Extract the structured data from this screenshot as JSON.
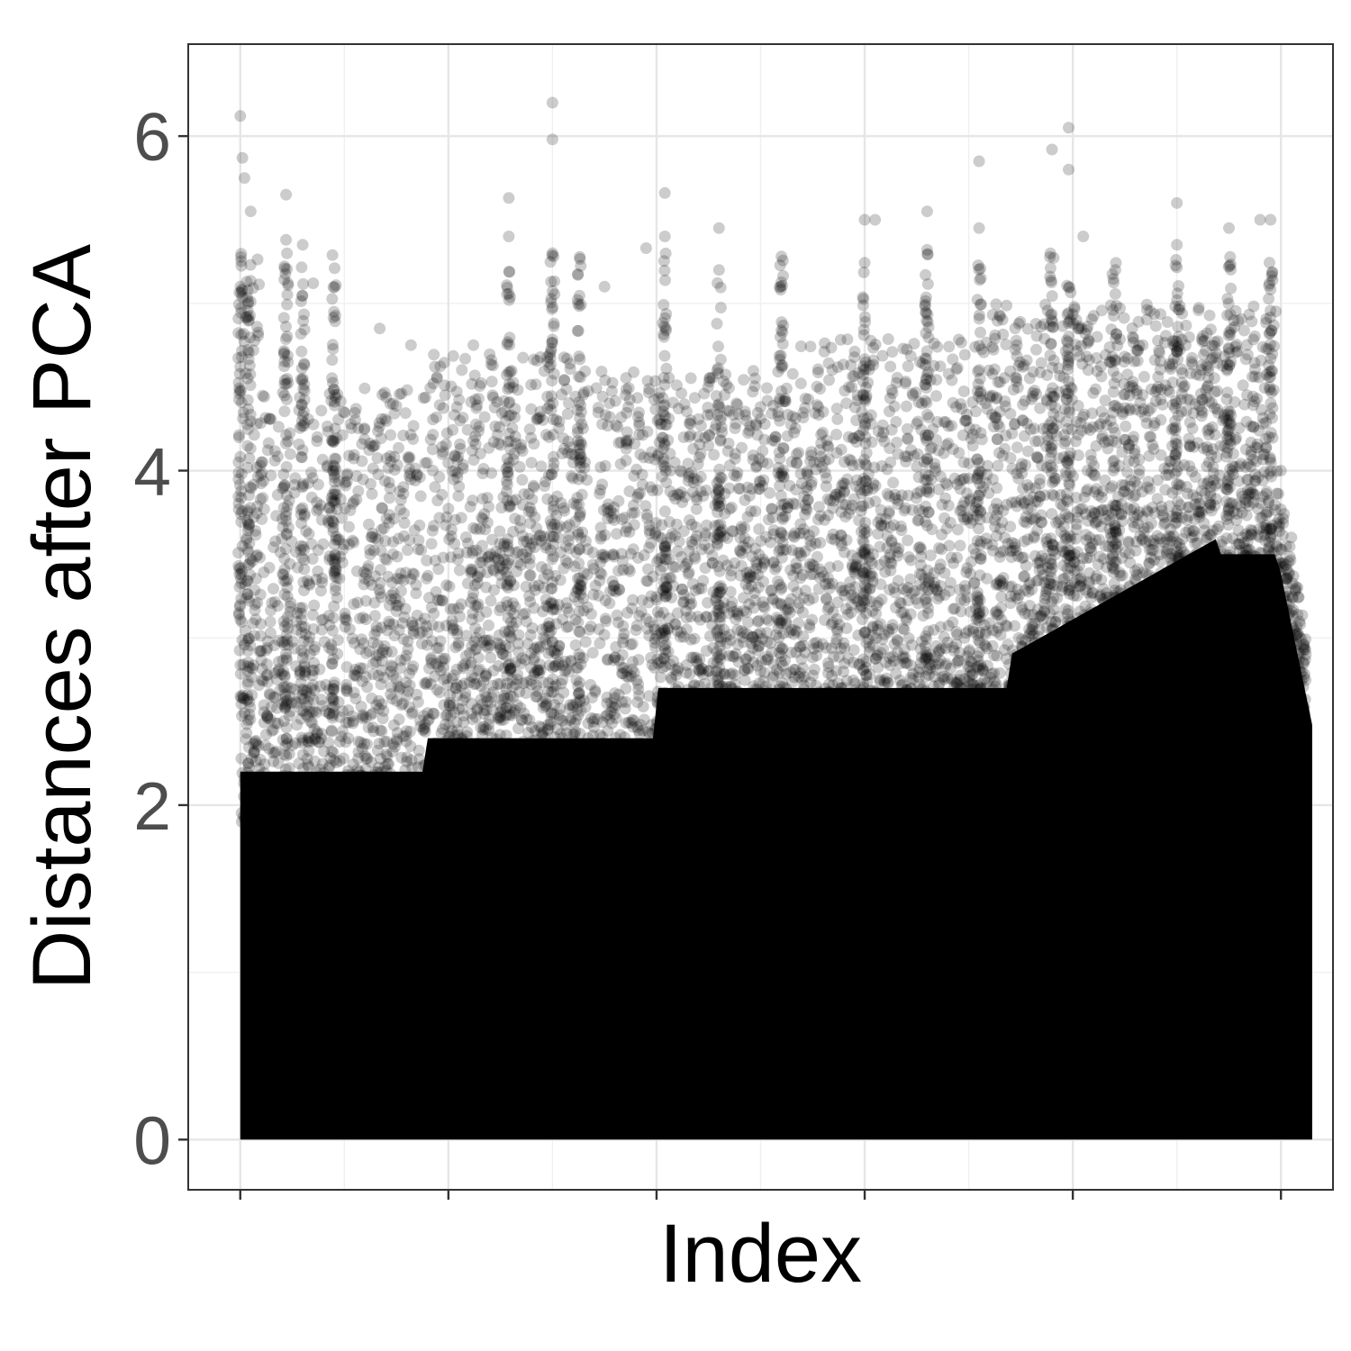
{
  "chart_data": {
    "type": "scatter",
    "title": "",
    "xlabel": "Index",
    "ylabel": "Distances after PCA",
    "x_tick_labels_shown": false,
    "y_ticks": [
      0,
      2,
      4,
      6
    ],
    "y_tick_labels": [
      "0",
      "2",
      "4",
      "6"
    ],
    "ylim": [
      -0.3,
      6.55
    ],
    "xlim": [
      -0.25,
      5.25
    ],
    "x_major_gridlines": [
      0,
      1,
      2,
      3,
      4,
      5
    ],
    "x_minor_gridlines": [
      0.5,
      1.5,
      2.5,
      3.5,
      4.5
    ],
    "grid": true,
    "legend": "none",
    "point_color": "#000000",
    "point_alpha": 0.2,
    "series_description": "dense point cloud: values concentrated between 0 and ~3, sparse vertical spikes reaching above 5",
    "points_estimated": [
      {
        "x": 0.0,
        "y": 6.12
      },
      {
        "x": 0.01,
        "y": 5.87
      },
      {
        "x": 0.02,
        "y": 5.75
      },
      {
        "x": 0.05,
        "y": 5.55
      },
      {
        "x": 0.22,
        "y": 5.65
      },
      {
        "x": 0.22,
        "y": 5.38
      },
      {
        "x": 0.3,
        "y": 5.35
      },
      {
        "x": 0.35,
        "y": 5.12
      },
      {
        "x": 0.45,
        "y": 4.95
      },
      {
        "x": 0.67,
        "y": 4.85
      },
      {
        "x": 0.82,
        "y": 4.75
      },
      {
        "x": 1.12,
        "y": 4.75
      },
      {
        "x": 1.29,
        "y": 5.63
      },
      {
        "x": 1.29,
        "y": 5.4
      },
      {
        "x": 1.5,
        "y": 6.2
      },
      {
        "x": 1.5,
        "y": 5.98
      },
      {
        "x": 1.5,
        "y": 5.3
      },
      {
        "x": 1.75,
        "y": 5.1
      },
      {
        "x": 1.95,
        "y": 5.33
      },
      {
        "x": 2.04,
        "y": 5.66
      },
      {
        "x": 2.04,
        "y": 5.4
      },
      {
        "x": 2.3,
        "y": 5.45
      },
      {
        "x": 2.3,
        "y": 5.2
      },
      {
        "x": 2.6,
        "y": 5.28
      },
      {
        "x": 3.0,
        "y": 5.5
      },
      {
        "x": 3.05,
        "y": 5.5
      },
      {
        "x": 3.3,
        "y": 5.55
      },
      {
        "x": 3.3,
        "y": 5.32
      },
      {
        "x": 3.55,
        "y": 5.85
      },
      {
        "x": 3.55,
        "y": 5.45
      },
      {
        "x": 3.9,
        "y": 5.92
      },
      {
        "x": 3.98,
        "y": 6.05
      },
      {
        "x": 3.98,
        "y": 5.8
      },
      {
        "x": 4.05,
        "y": 5.4
      },
      {
        "x": 4.5,
        "y": 5.6
      },
      {
        "x": 4.5,
        "y": 5.35
      },
      {
        "x": 4.75,
        "y": 5.45
      },
      {
        "x": 4.9,
        "y": 5.5
      },
      {
        "x": 4.95,
        "y": 5.5
      },
      {
        "x": 5.0,
        "y": 4.0
      },
      {
        "x": 5.05,
        "y": 3.6
      },
      {
        "x": 5.08,
        "y": 3.3
      },
      {
        "x": 5.12,
        "y": 2.9
      }
    ]
  }
}
